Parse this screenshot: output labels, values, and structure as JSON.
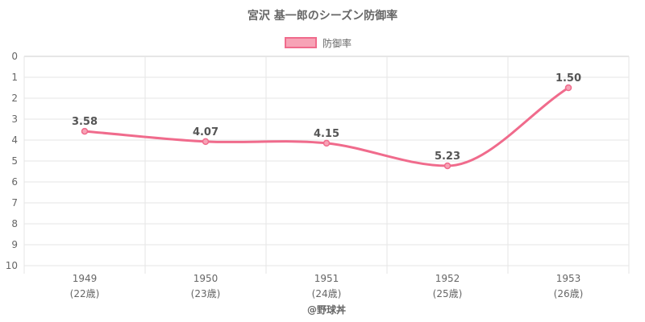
{
  "chart_data": {
    "type": "line",
    "title": "宮沢 基一郎のシーズン防御率",
    "legend": {
      "label": "防御率",
      "position": "top"
    },
    "categories": [
      "1949",
      "1950",
      "1951",
      "1952",
      "1953"
    ],
    "category_sublabels": [
      "(22歳)",
      "(23歳)",
      "(24歳)",
      "(25歳)",
      "(26歳)"
    ],
    "series": [
      {
        "name": "防御率",
        "values": [
          3.58,
          4.07,
          4.15,
          5.23,
          1.5
        ],
        "labels": [
          "3.58",
          "4.07",
          "4.15",
          "5.23",
          "1.50"
        ]
      }
    ],
    "y_ticks": [
      "0",
      "1",
      "2",
      "3",
      "4",
      "5",
      "6",
      "7",
      "8",
      "9",
      "10"
    ],
    "ylim": [
      0,
      10
    ],
    "y_reversed": true,
    "grid": true,
    "colors": {
      "line": "#f06b8c",
      "fill": "#f7a3b6",
      "grid": "#e5e5e5",
      "text": "#666666"
    },
    "footer": "@野球丼"
  }
}
